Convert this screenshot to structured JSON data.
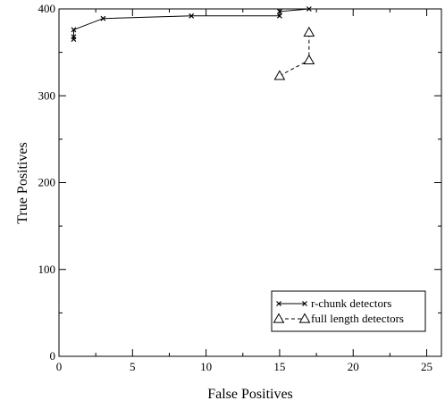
{
  "chart_data": {
    "type": "line",
    "title": "",
    "xlabel": "False Positives",
    "ylabel": "True Positives",
    "xlim": [
      0,
      26
    ],
    "ylim": [
      0,
      400
    ],
    "x_ticks": [
      0,
      5,
      10,
      15,
      20,
      25
    ],
    "y_ticks": [
      0,
      100,
      200,
      300,
      400
    ],
    "grid": false,
    "legend_position": "bottom-right",
    "series": [
      {
        "name": "r-chunk detectors",
        "marker": "x",
        "line": "solid",
        "color": "#000000",
        "points": [
          {
            "x": 1,
            "y": 365
          },
          {
            "x": 1,
            "y": 368
          },
          {
            "x": 1,
            "y": 376
          },
          {
            "x": 3,
            "y": 389
          },
          {
            "x": 9,
            "y": 392
          },
          {
            "x": 15,
            "y": 392
          },
          {
            "x": 15,
            "y": 397
          },
          {
            "x": 17,
            "y": 400
          }
        ]
      },
      {
        "name": "full length detectors",
        "marker": "triangle",
        "line": "dashed",
        "color": "#000000",
        "points": [
          {
            "x": 15,
            "y": 323
          },
          {
            "x": 17,
            "y": 341
          },
          {
            "x": 17,
            "y": 373
          }
        ]
      }
    ]
  }
}
